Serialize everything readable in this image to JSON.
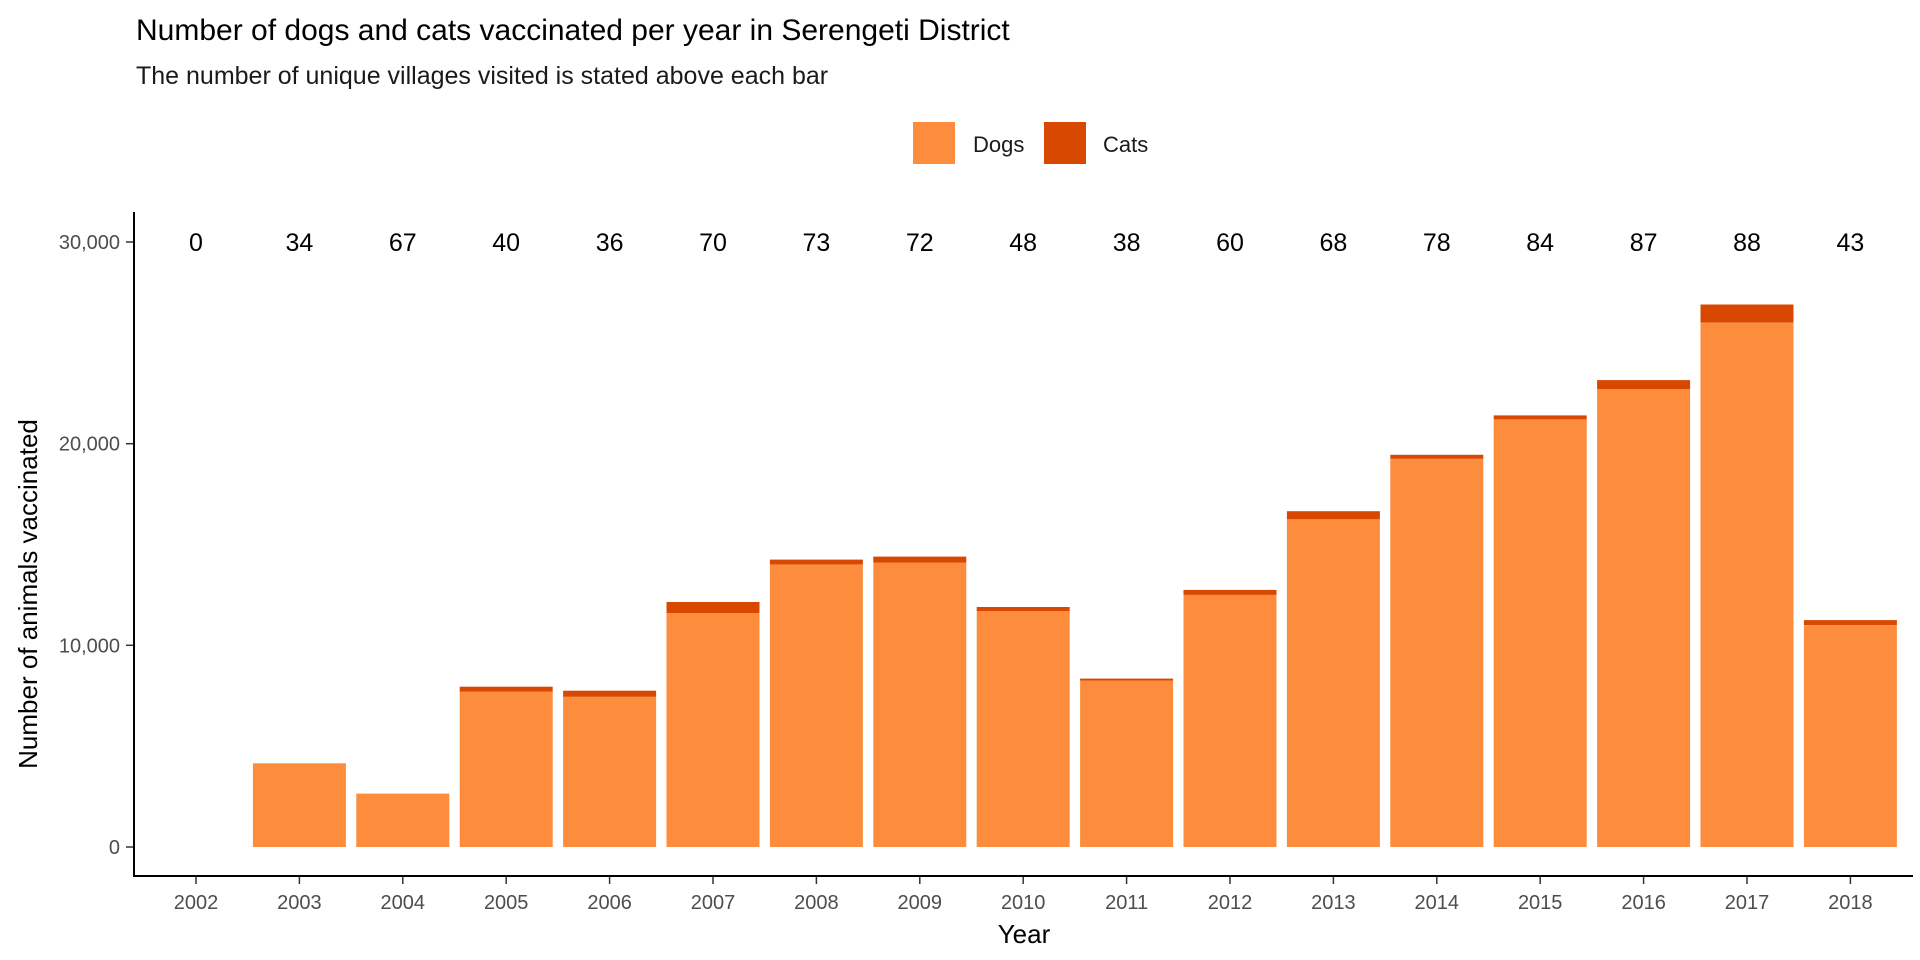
{
  "chart_data": {
    "type": "bar",
    "stacked": true,
    "title": "Number of dogs and cats vaccinated per year in Serengeti District",
    "subtitle": "The number of unique villages visited is stated above each bar",
    "xlabel": "Year",
    "ylabel": "Number of animals vaccinated",
    "ylim": [
      0,
      30000
    ],
    "yticks": [
      0,
      10000,
      20000,
      30000
    ],
    "ytick_labels": [
      "0",
      "10,000",
      "20,000",
      "30,000"
    ],
    "legend_position": "top-center",
    "grid": false,
    "categories": [
      "2002",
      "2003",
      "2004",
      "2005",
      "2006",
      "2007",
      "2008",
      "2009",
      "2010",
      "2011",
      "2012",
      "2013",
      "2014",
      "2015",
      "2016",
      "2017",
      "2018"
    ],
    "series": [
      {
        "name": "Dogs",
        "color": "#FD8D3C",
        "values": [
          0,
          4150,
          2650,
          7700,
          7450,
          11600,
          14000,
          14100,
          11700,
          8250,
          12500,
          16250,
          19250,
          21200,
          22700,
          26000,
          11000
        ]
      },
      {
        "name": "Cats",
        "color": "#D94801",
        "values": [
          0,
          0,
          0,
          250,
          300,
          550,
          250,
          300,
          200,
          100,
          250,
          400,
          200,
          200,
          450,
          900,
          250
        ]
      }
    ],
    "villages_visited": [
      "0",
      "34",
      "67",
      "40",
      "36",
      "70",
      "73",
      "72",
      "48",
      "38",
      "60",
      "68",
      "78",
      "84",
      "87",
      "88",
      "43"
    ]
  }
}
